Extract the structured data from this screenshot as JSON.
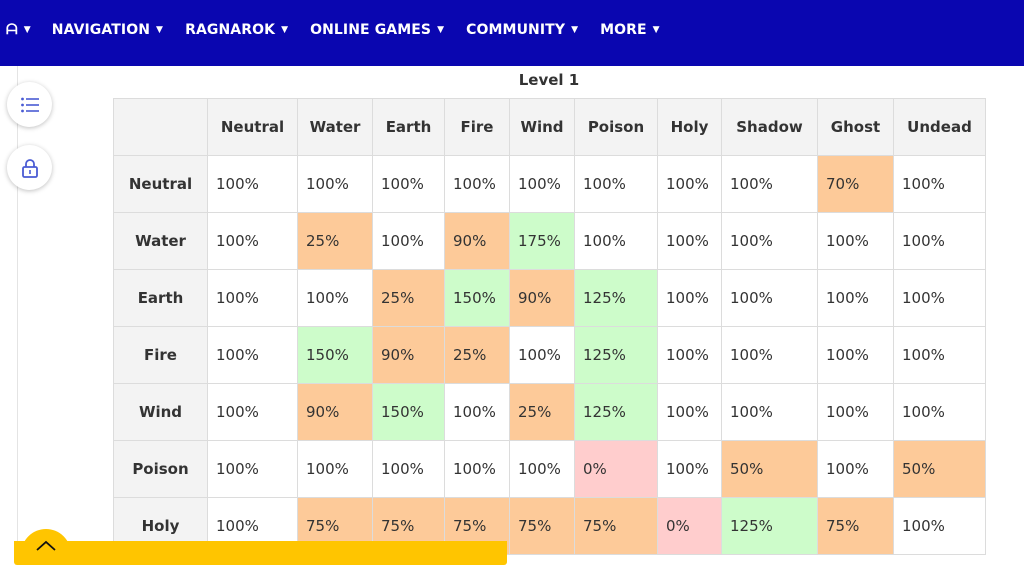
{
  "nav": {
    "logo": "ᗩ",
    "items": [
      {
        "label": "NAVIGATION"
      },
      {
        "label": "RAGNAROK"
      },
      {
        "label": "ONLINE GAMES"
      },
      {
        "label": "COMMUNITY"
      },
      {
        "label": "MORE"
      }
    ]
  },
  "sidebar": {
    "toc_icon": "list-icon",
    "lock_icon": "lock-icon"
  },
  "table": {
    "title": "Level 1",
    "columns": [
      "Neutral",
      "Water",
      "Earth",
      "Fire",
      "Wind",
      "Poison",
      "Holy",
      "Shadow",
      "Ghost",
      "Undead"
    ],
    "colors": {
      "orange": "#fdca99",
      "green": "#cdfcca",
      "red": "#ffcdcd"
    },
    "rows": [
      {
        "label": "Neutral",
        "cells": [
          [
            "100%",
            ""
          ],
          [
            "100%",
            ""
          ],
          [
            "100%",
            ""
          ],
          [
            "100%",
            ""
          ],
          [
            "100%",
            ""
          ],
          [
            "100%",
            ""
          ],
          [
            "100%",
            ""
          ],
          [
            "100%",
            ""
          ],
          [
            "70%",
            "orange"
          ],
          [
            "100%",
            ""
          ]
        ]
      },
      {
        "label": "Water",
        "cells": [
          [
            "100%",
            ""
          ],
          [
            "25%",
            "orange"
          ],
          [
            "100%",
            ""
          ],
          [
            "90%",
            "orange"
          ],
          [
            "175%",
            "green"
          ],
          [
            "100%",
            ""
          ],
          [
            "100%",
            ""
          ],
          [
            "100%",
            ""
          ],
          [
            "100%",
            ""
          ],
          [
            "100%",
            ""
          ]
        ]
      },
      {
        "label": "Earth",
        "cells": [
          [
            "100%",
            ""
          ],
          [
            "100%",
            ""
          ],
          [
            "25%",
            "orange"
          ],
          [
            "150%",
            "green"
          ],
          [
            "90%",
            "orange"
          ],
          [
            "125%",
            "green"
          ],
          [
            "100%",
            ""
          ],
          [
            "100%",
            ""
          ],
          [
            "100%",
            ""
          ],
          [
            "100%",
            ""
          ]
        ]
      },
      {
        "label": "Fire",
        "cells": [
          [
            "100%",
            ""
          ],
          [
            "150%",
            "green"
          ],
          [
            "90%",
            "orange"
          ],
          [
            "25%",
            "orange"
          ],
          [
            "100%",
            ""
          ],
          [
            "125%",
            "green"
          ],
          [
            "100%",
            ""
          ],
          [
            "100%",
            ""
          ],
          [
            "100%",
            ""
          ],
          [
            "100%",
            ""
          ]
        ]
      },
      {
        "label": "Wind",
        "cells": [
          [
            "100%",
            ""
          ],
          [
            "90%",
            "orange"
          ],
          [
            "150%",
            "green"
          ],
          [
            "100%",
            ""
          ],
          [
            "25%",
            "orange"
          ],
          [
            "125%",
            "green"
          ],
          [
            "100%",
            ""
          ],
          [
            "100%",
            ""
          ],
          [
            "100%",
            ""
          ],
          [
            "100%",
            ""
          ]
        ]
      },
      {
        "label": "Poison",
        "cells": [
          [
            "100%",
            ""
          ],
          [
            "100%",
            ""
          ],
          [
            "100%",
            ""
          ],
          [
            "100%",
            ""
          ],
          [
            "100%",
            ""
          ],
          [
            "0%",
            "red"
          ],
          [
            "100%",
            ""
          ],
          [
            "50%",
            "orange"
          ],
          [
            "100%",
            ""
          ],
          [
            "50%",
            "orange"
          ]
        ]
      },
      {
        "label": "Holy",
        "cells": [
          [
            "100%",
            ""
          ],
          [
            "75%",
            "orange"
          ],
          [
            "75%",
            "orange"
          ],
          [
            "75%",
            "orange"
          ],
          [
            "75%",
            "orange"
          ],
          [
            "75%",
            "orange"
          ],
          [
            "0%",
            "red"
          ],
          [
            "125%",
            "green"
          ],
          [
            "75%",
            "orange"
          ],
          [
            "100%",
            ""
          ]
        ]
      }
    ]
  },
  "footer": {
    "scroll_icon": "chevron-up-icon"
  }
}
